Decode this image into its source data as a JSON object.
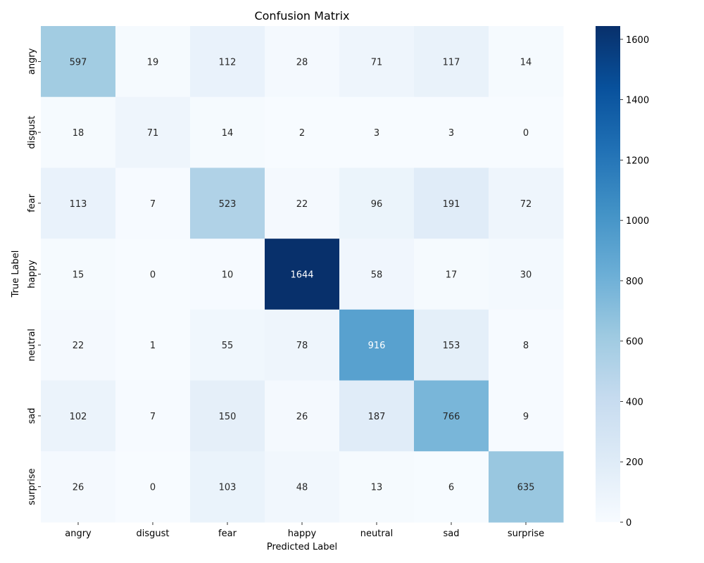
{
  "chart_data": {
    "type": "heatmap",
    "title": "Confusion Matrix",
    "xlabel": "Predicted Label",
    "ylabel": "True Label",
    "x_categories": [
      "angry",
      "disgust",
      "fear",
      "happy",
      "neutral",
      "sad",
      "surprise"
    ],
    "y_categories": [
      "angry",
      "disgust",
      "fear",
      "happy",
      "neutral",
      "sad",
      "surprise"
    ],
    "values": [
      [
        597,
        19,
        112,
        28,
        71,
        117,
        14
      ],
      [
        18,
        71,
        14,
        2,
        3,
        3,
        0
      ],
      [
        113,
        7,
        523,
        22,
        96,
        191,
        72
      ],
      [
        15,
        0,
        10,
        1644,
        58,
        17,
        30
      ],
      [
        22,
        1,
        55,
        78,
        916,
        153,
        8
      ],
      [
        102,
        7,
        150,
        26,
        187,
        766,
        9
      ],
      [
        26,
        0,
        103,
        48,
        13,
        6,
        635
      ]
    ],
    "colormap": "Blues",
    "color_range": [
      0,
      1644
    ],
    "colorbar_ticks": [
      0,
      200,
      400,
      600,
      800,
      1000,
      1200,
      1400,
      1600
    ],
    "annotations": true
  }
}
